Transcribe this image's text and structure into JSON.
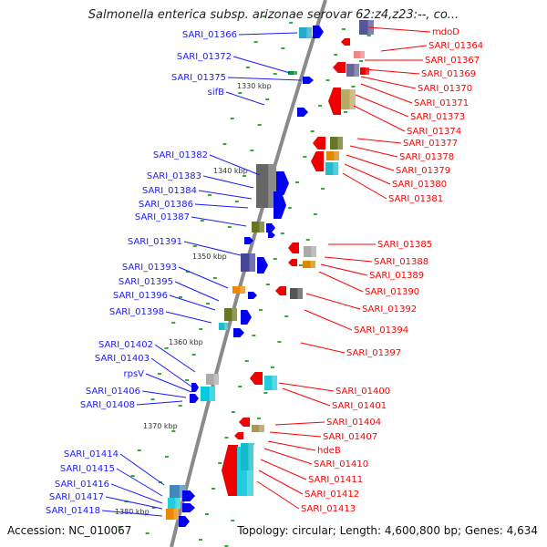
{
  "title": "Salmonella enterica subsp. arizonae serovar 62:z4,z23:--, co...",
  "accession": "Accession: NC_010067",
  "topology": "Topology: circular; Length: 4,600,800 bp; Genes: 4,634",
  "colors": {
    "left_labels": "#1a1aff",
    "right_labels": "#ff0000",
    "forward_genes": "#0000ee",
    "reverse_genes": "#ee0000",
    "backbone": "#888888",
    "ticks": "#33aa33"
  },
  "tick_labels": [
    "1330 kbp",
    "1340 kbp",
    "1350 kbp",
    "1360 kbp",
    "1370 kbp",
    "1380 kbp"
  ],
  "left_genes": [
    "SARI_01366",
    "SARI_01372",
    "SARI_01375",
    "sifB",
    "SARI_01382",
    "SARI_01383",
    "SARI_01384",
    "SARI_01386",
    "SARI_01387",
    "SARI_01391",
    "SARI_01393",
    "SARI_01395",
    "SARI_01396",
    "SARI_01398",
    "SARI_01402",
    "SARI_01403",
    "rpsV",
    "SARI_01406",
    "SARI_01408",
    "SARI_01414",
    "SARI_01415",
    "SARI_01416",
    "SARI_01417",
    "SARI_01418"
  ],
  "right_genes": [
    "mdoD",
    "SARI_01364",
    "SARI_01367",
    "SARI_01369",
    "SARI_01370",
    "SARI_01371",
    "SARI_01373",
    "SARI_01374",
    "SARI_01377",
    "SARI_01378",
    "SARI_01379",
    "SARI_01380",
    "SARI_01381",
    "SARI_01385",
    "SARI_01388",
    "SARI_01389",
    "SARI_01390",
    "SARI_01392",
    "SARI_01394",
    "SARI_01397",
    "SARI_01400",
    "SARI_01401",
    "SARI_01404",
    "SARI_01407",
    "hdeB",
    "SARI_01410",
    "SARI_01411",
    "SARI_01412",
    "SARI_01413"
  ]
}
